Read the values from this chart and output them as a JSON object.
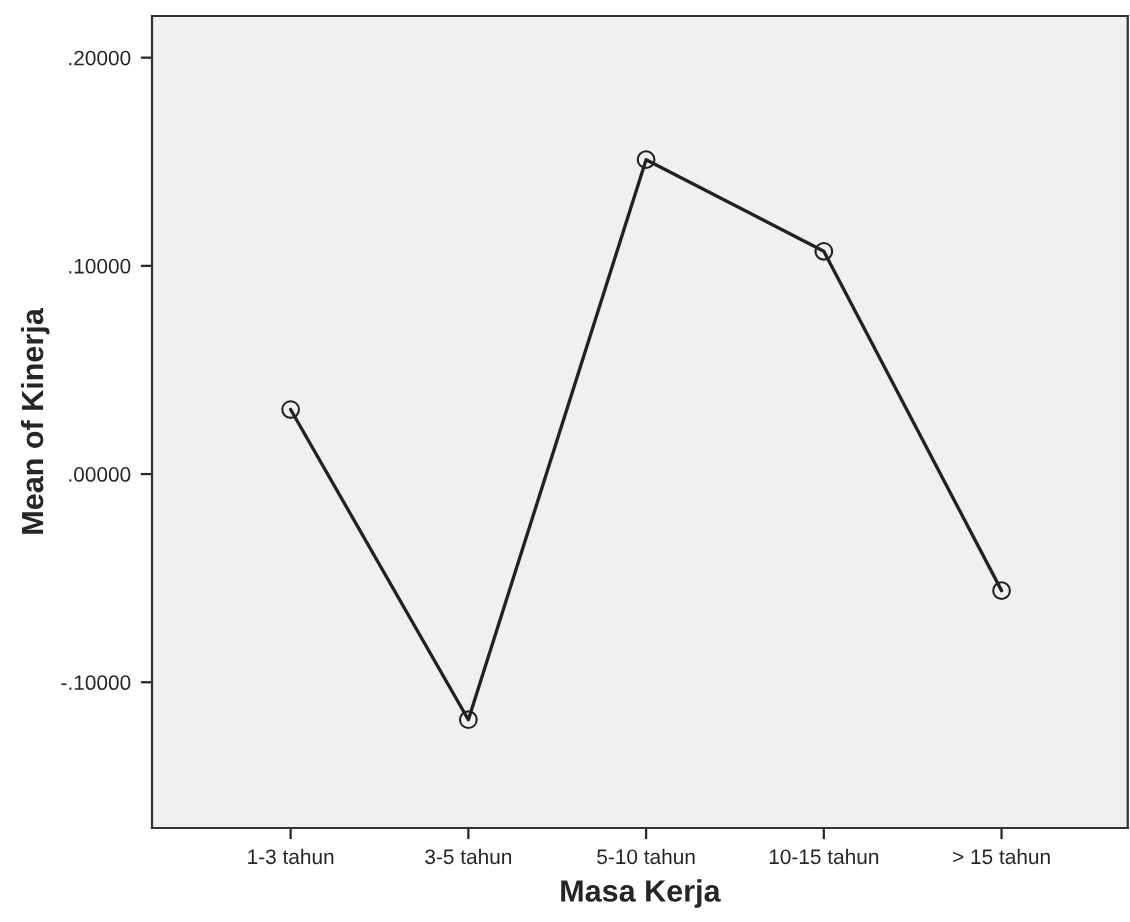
{
  "chart_data": {
    "type": "line",
    "xlabel": "Masa Kerja",
    "ylabel": "Mean of Kinerja",
    "categories": [
      "1-3 tahun",
      "3-5 tahun",
      "5-10 tahun",
      "10-15 tahun",
      "> 15 tahun"
    ],
    "series": [
      {
        "color": "#222222",
        "values": [
          0.031,
          -0.118,
          0.151,
          0.107,
          -0.056
        ]
      }
    ],
    "ylim": [
      -0.17,
      0.22
    ],
    "yticks": [
      {
        "value": -0.1,
        "label": "-.10000"
      },
      {
        "value": 0,
        "label": ".00000"
      },
      {
        "value": 0.1,
        "label": ".10000"
      },
      {
        "value": 0.2,
        "label": ".20000"
      }
    ],
    "marker": "circle",
    "line_style": "solid"
  }
}
